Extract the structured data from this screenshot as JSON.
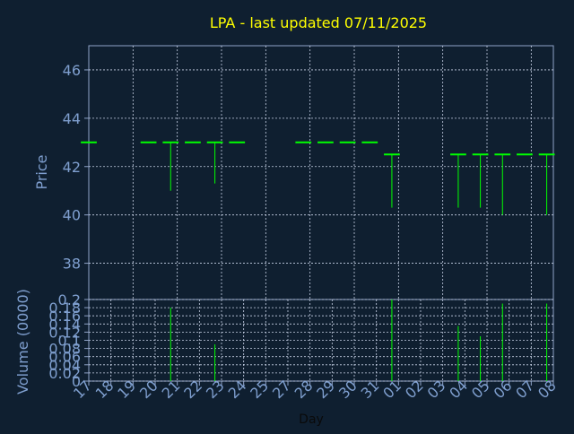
{
  "colors": {
    "background": "#0f1f30",
    "axis": "#8fa3c8",
    "grid": "#c8d2e6",
    "title": "#ffff00",
    "tick_label": "#7f9fcf",
    "day_label": "#0a0a0a",
    "series": "#00ff00"
  },
  "chart_data": [
    {
      "type": "ohlc",
      "title": "LPA -  last updated 07/11/2025",
      "ylabel": "Price",
      "ylim": [
        36.5,
        47
      ],
      "yticks": [
        38,
        40,
        42,
        44,
        46
      ],
      "grid": true,
      "x_categories": [
        "17",
        "18",
        "19",
        "20",
        "21",
        "22",
        "23",
        "24",
        "25",
        "27",
        "28",
        "29",
        "30",
        "31",
        "01",
        "02",
        "03",
        "04",
        "05",
        "06",
        "07",
        "08"
      ],
      "bars": [
        {
          "x": 0,
          "open": 43.0,
          "high": 43.0,
          "low": 43.0,
          "close": 43.0
        },
        {
          "x": 2.7,
          "open": 43.0,
          "high": 43.0,
          "low": 43.0,
          "close": 43.0
        },
        {
          "x": 3.7,
          "open": 43.0,
          "high": 43.0,
          "low": 41.0,
          "close": 43.0
        },
        {
          "x": 4.7,
          "open": 43.0,
          "high": 43.0,
          "low": 43.0,
          "close": 43.0
        },
        {
          "x": 5.7,
          "open": 43.0,
          "high": 43.0,
          "low": 41.3,
          "close": 43.0
        },
        {
          "x": 6.7,
          "open": 43.0,
          "high": 43.0,
          "low": 43.0,
          "close": 43.0
        },
        {
          "x": 9.7,
          "open": 43.0,
          "high": 43.0,
          "low": 43.0,
          "close": 43.0
        },
        {
          "x": 10.7,
          "open": 43.0,
          "high": 43.0,
          "low": 43.0,
          "close": 43.0
        },
        {
          "x": 11.7,
          "open": 43.0,
          "high": 43.0,
          "low": 43.0,
          "close": 43.0
        },
        {
          "x": 12.7,
          "open": 43.0,
          "high": 43.0,
          "low": 43.0,
          "close": 43.0
        },
        {
          "x": 13.7,
          "open": 42.5,
          "high": 42.5,
          "low": 40.3,
          "close": 42.5
        },
        {
          "x": 16.7,
          "open": 42.5,
          "high": 42.5,
          "low": 40.3,
          "close": 42.5
        },
        {
          "x": 17.7,
          "open": 42.5,
          "high": 42.5,
          "low": 40.3,
          "close": 42.5
        },
        {
          "x": 18.7,
          "open": 42.5,
          "high": 42.5,
          "low": 40.0,
          "close": 42.5
        },
        {
          "x": 19.7,
          "open": 42.5,
          "high": 42.5,
          "low": 42.5,
          "close": 42.5
        },
        {
          "x": 20.7,
          "open": 42.5,
          "high": 42.5,
          "low": 40.0,
          "close": 42.5
        }
      ]
    },
    {
      "type": "bar",
      "ylabel": "Volume (0000)",
      "xlabel": "Day",
      "ylim": [
        0,
        0.2
      ],
      "yticks": [
        "0",
        "0.02",
        "0.04",
        "0.06",
        "0.08",
        "0.1",
        "0.12",
        "0.14",
        "0.16",
        "0.18",
        "0.2"
      ],
      "ytick_values": [
        0,
        0.02,
        0.04,
        0.06,
        0.08,
        0.1,
        0.12,
        0.14,
        0.16,
        0.18,
        0.2
      ],
      "grid": true,
      "x_categories": [
        "17",
        "18",
        "19",
        "20",
        "21",
        "22",
        "23",
        "24",
        "25",
        "27",
        "28",
        "29",
        "30",
        "31",
        "01",
        "02",
        "03",
        "04",
        "05",
        "06",
        "07",
        "08"
      ],
      "bars": [
        {
          "x": 3.7,
          "value": 0.18
        },
        {
          "x": 5.7,
          "value": 0.09
        },
        {
          "x": 13.7,
          "value": 0.2
        },
        {
          "x": 16.7,
          "value": 0.135
        },
        {
          "x": 17.7,
          "value": 0.11
        },
        {
          "x": 18.7,
          "value": 0.19
        },
        {
          "x": 20.7,
          "value": 0.19
        }
      ]
    }
  ]
}
